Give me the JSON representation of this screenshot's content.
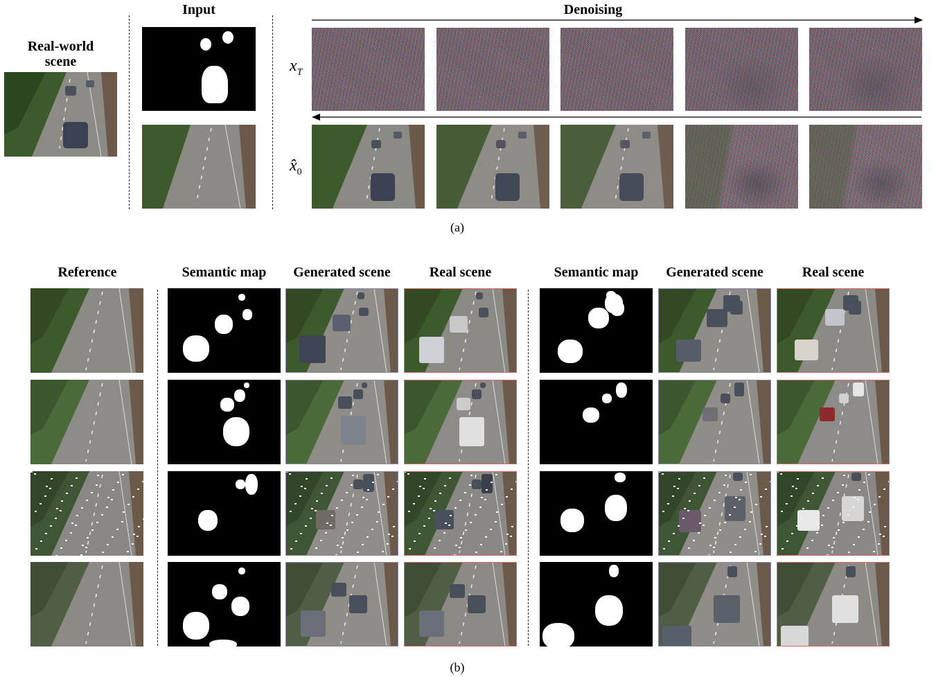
{
  "panel_a": {
    "scene_label": "Real-world\nscene",
    "input_label": "Input",
    "denoising_label": "Denoising",
    "xT_label": "x",
    "xT_sub": "T",
    "x0_label": "x̂",
    "x0_sub": "0",
    "caption": "(a)"
  },
  "panel_b": {
    "reference_label": "Reference",
    "left_group": {
      "semantic_label": "Semantic map",
      "generated_label": "Generated scene",
      "real_label": "Real scene"
    },
    "right_group": {
      "semantic_label": "Semantic map",
      "generated_label": "Generated scene",
      "real_label": "Real scene"
    },
    "caption": "(b)"
  }
}
